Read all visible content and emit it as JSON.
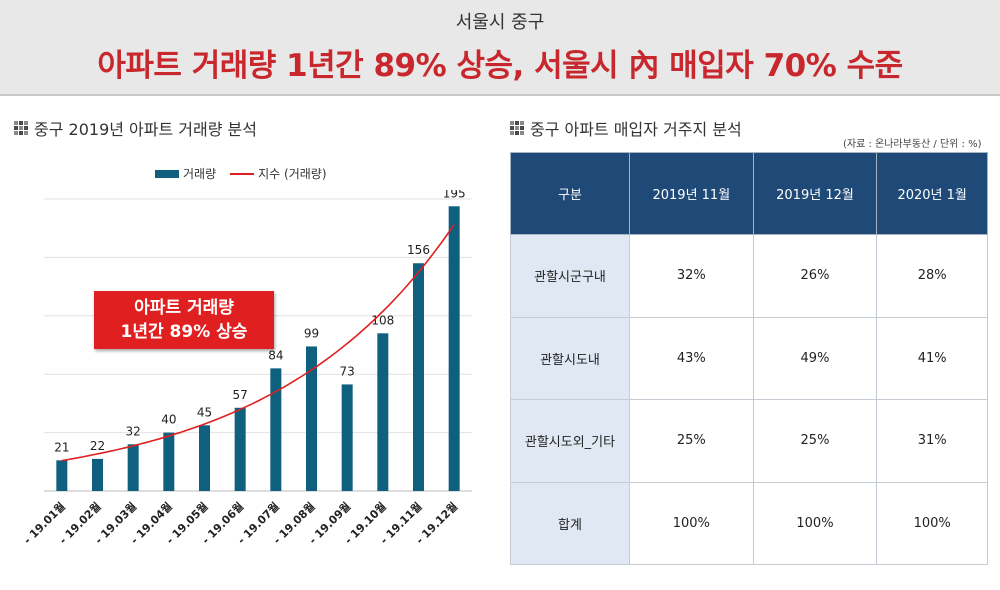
{
  "header": {
    "subtitle": "서울시 중구",
    "title": "아파트 거래량 1년간 89% 상승, 서울시 內 매입자 70% 수준"
  },
  "left_section": {
    "title": "중구 2019년 아파트 거래량 분석",
    "legend_bar": "거래량",
    "legend_line": "지수 (거래량)",
    "callout_line1": "아파트 거래량",
    "callout_line2": "1년간 89% 상승"
  },
  "right_section": {
    "title": "중구 아파트 매입자 거주지 분석",
    "source": "(자료 : 온나라부동산 / 단위 : %)"
  },
  "colors": {
    "header_title": "#c8282d",
    "bar": "#0f5f7f",
    "trend_line": "#e02020",
    "table_header": "#1f4a78",
    "table_rowhead": "#dfe8f3"
  },
  "chart_data": [
    {
      "type": "bar",
      "categories": [
        "- 19.01월",
        "- 19.02월",
        "- 19.03월",
        "- 19.04월",
        "- 19.05월",
        "- 19.06월",
        "- 19.07월",
        "- 19.08월",
        "- 19.09월",
        "- 19.10월",
        "- 19.11월",
        "- 19.12월"
      ],
      "series": [
        {
          "name": "거래량",
          "type": "bar",
          "values": [
            21,
            22,
            32,
            40,
            45,
            57,
            84,
            99,
            73,
            108,
            156,
            195
          ]
        },
        {
          "name": "지수 (거래량)",
          "type": "line",
          "trend": "exponential"
        }
      ],
      "ylim": [
        0,
        200
      ],
      "grid": true,
      "legend": "top"
    },
    {
      "type": "table",
      "columns": [
        "구분",
        "2019년 11월",
        "2019년 12월",
        "2020년 1월"
      ],
      "rows": [
        [
          "관할시군구내",
          "32%",
          "26%",
          "28%"
        ],
        [
          "관할시도내",
          "43%",
          "49%",
          "41%"
        ],
        [
          "관할시도외_기타",
          "25%",
          "25%",
          "31%"
        ],
        [
          "합계",
          "100%",
          "100%",
          "100%"
        ]
      ]
    }
  ]
}
